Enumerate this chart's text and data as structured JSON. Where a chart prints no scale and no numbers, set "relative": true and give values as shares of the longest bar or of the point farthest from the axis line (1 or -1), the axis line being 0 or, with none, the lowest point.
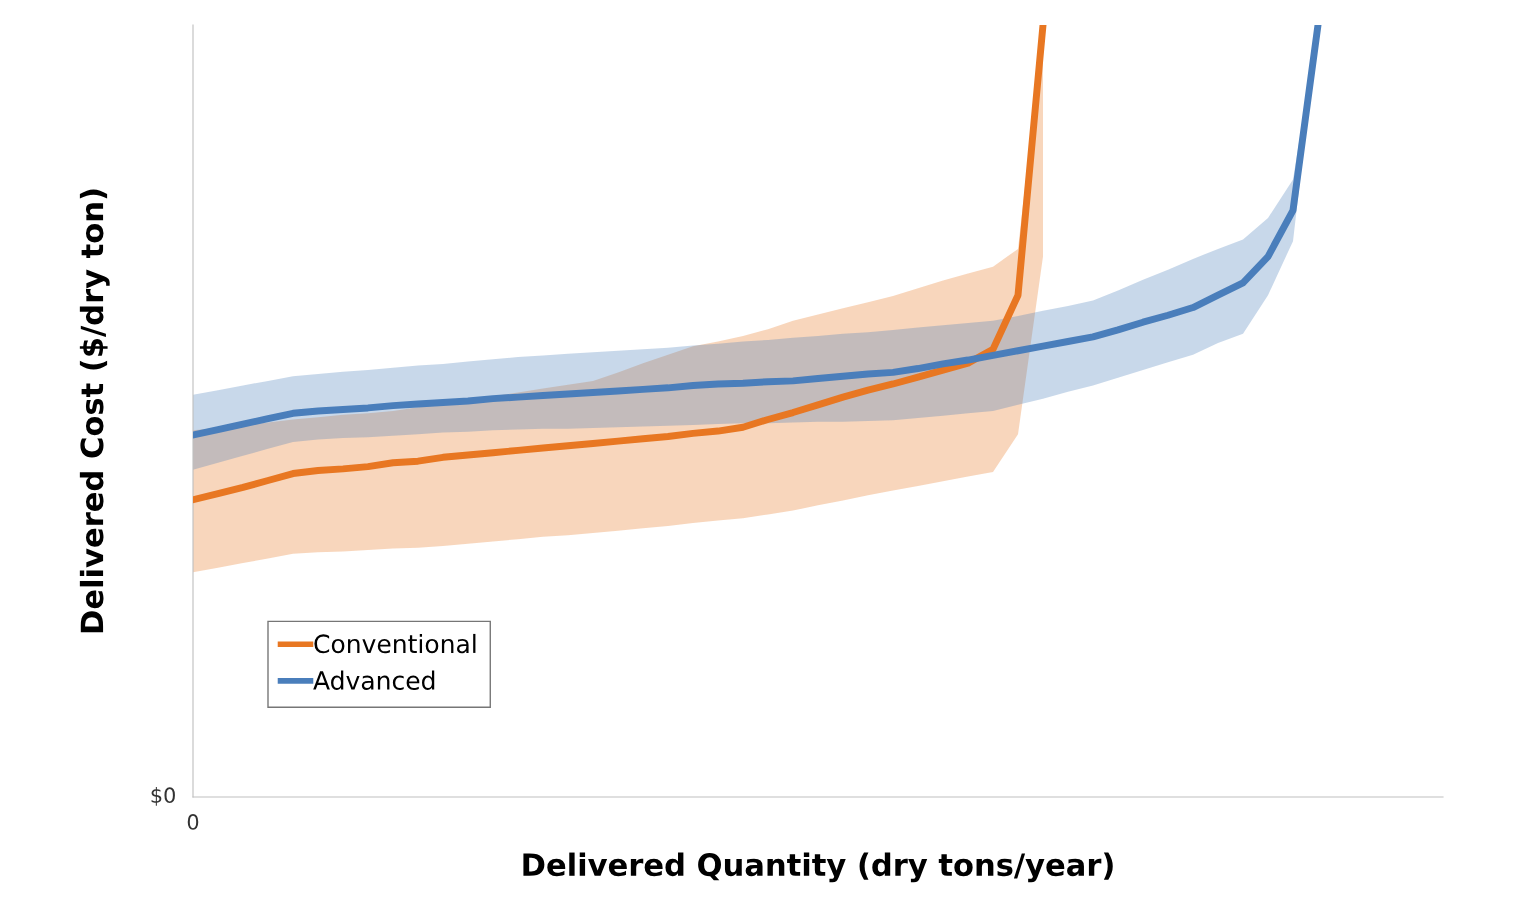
{
  "chart_data": {
    "type": "line",
    "relative": true,
    "xlabel": "Delivered Quantity (dry tons/year)",
    "ylabel": "Delivered Cost ($/dry ton)",
    "annotations": [
      "$0",
      "0"
    ],
    "legend": "bottom left",
    "marker": "none",
    "line_style": "solid",
    "categories": [
      null,
      null,
      null,
      null,
      null,
      null,
      null,
      null,
      null,
      null,
      null,
      null,
      null,
      null,
      null,
      null,
      null,
      null,
      null,
      null,
      null,
      null,
      null,
      null,
      null,
      null,
      null,
      null,
      null,
      null,
      null,
      null,
      null,
      null,
      null,
      null,
      null,
      null,
      null,
      null,
      null,
      null,
      null,
      null,
      null,
      null,
      null,
      null,
      null,
      null,
      null
    ],
    "series": [
      {
        "name": "Conventional",
        "color": "#e87722",
        "values": [
          0.385,
          0.393,
          0.401,
          0.41,
          0.419,
          0.423,
          0.425,
          0.428,
          0.433,
          0.435,
          0.44,
          0.443,
          0.446,
          0.449,
          0.452,
          0.455,
          0.458,
          0.461,
          0.464,
          0.467,
          0.471,
          0.474,
          0.479,
          0.489,
          0.498,
          0.508,
          0.518,
          0.527,
          0.535,
          0.544,
          0.553,
          0.562,
          0.58,
          0.65,
          1.0,
          null,
          null,
          null,
          null,
          null,
          null,
          null,
          null,
          null,
          null,
          null,
          null,
          null,
          null,
          null,
          null
        ],
        "lower": [
          0.291,
          0.297,
          0.303,
          0.309,
          0.315,
          0.317,
          0.318,
          0.32,
          0.322,
          0.323,
          0.325,
          0.328,
          0.331,
          0.334,
          0.337,
          0.339,
          0.342,
          0.345,
          0.348,
          0.351,
          0.355,
          0.358,
          0.361,
          0.366,
          0.371,
          0.378,
          0.384,
          0.391,
          0.397,
          0.403,
          0.409,
          0.415,
          0.421,
          0.47,
          0.7,
          null,
          null,
          null,
          null,
          null,
          null,
          null,
          null,
          null,
          null,
          null,
          null,
          null,
          null,
          null,
          null
        ],
        "upper": [
          0.475,
          0.478,
          0.482,
          0.485,
          0.489,
          0.492,
          0.495,
          0.497,
          0.5,
          0.505,
          0.51,
          0.515,
          0.519,
          0.524,
          0.529,
          0.534,
          0.539,
          0.55,
          0.562,
          0.573,
          0.584,
          0.59,
          0.597,
          0.606,
          0.617,
          0.625,
          0.633,
          0.641,
          0.649,
          0.659,
          0.669,
          0.678,
          0.687,
          0.71,
          1.0,
          null,
          null,
          null,
          null,
          null,
          null,
          null,
          null,
          null,
          null,
          null,
          null,
          null,
          null,
          null,
          null
        ]
      },
      {
        "name": "Advanced",
        "color": "#4a7ebb",
        "values": [
          0.469,
          0.476,
          0.483,
          0.49,
          0.497,
          0.5,
          0.502,
          0.504,
          0.507,
          0.509,
          0.511,
          0.513,
          0.516,
          0.518,
          0.52,
          0.522,
          0.524,
          0.526,
          0.528,
          0.53,
          0.533,
          0.535,
          0.536,
          0.538,
          0.539,
          0.542,
          0.545,
          0.548,
          0.55,
          0.555,
          0.561,
          0.566,
          0.572,
          0.578,
          0.584,
          0.59,
          0.596,
          0.605,
          0.615,
          0.624,
          0.634,
          0.65,
          0.666,
          0.7,
          0.76,
          1.0,
          null,
          null,
          null,
          null,
          null
        ],
        "lower": [
          0.424,
          0.433,
          0.442,
          0.451,
          0.46,
          0.463,
          0.465,
          0.466,
          0.468,
          0.47,
          0.472,
          0.473,
          0.475,
          0.476,
          0.477,
          0.477,
          0.478,
          0.479,
          0.48,
          0.481,
          0.482,
          0.483,
          0.484,
          0.484,
          0.485,
          0.486,
          0.486,
          0.487,
          0.488,
          0.491,
          0.494,
          0.497,
          0.5,
          0.508,
          0.516,
          0.525,
          0.533,
          0.543,
          0.553,
          0.563,
          0.573,
          0.588,
          0.6,
          0.65,
          0.72,
          1.0,
          null,
          null,
          null,
          null,
          null
        ],
        "upper": [
          0.521,
          0.527,
          0.533,
          0.539,
          0.545,
          0.548,
          0.551,
          0.553,
          0.556,
          0.559,
          0.561,
          0.564,
          0.567,
          0.57,
          0.572,
          0.574,
          0.576,
          0.578,
          0.58,
          0.582,
          0.585,
          0.587,
          0.59,
          0.592,
          0.595,
          0.597,
          0.6,
          0.602,
          0.605,
          0.608,
          0.611,
          0.614,
          0.617,
          0.623,
          0.63,
          0.636,
          0.643,
          0.656,
          0.67,
          0.683,
          0.697,
          0.71,
          0.722,
          0.75,
          0.8,
          1.0,
          null,
          null,
          null,
          null,
          null
        ]
      }
    ]
  }
}
